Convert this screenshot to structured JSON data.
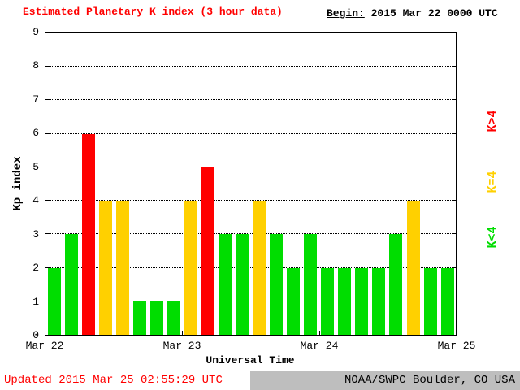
{
  "title": "Estimated Planetary K index (3 hour data)",
  "begin": {
    "label": "Begin:",
    "value": "2015 Mar 22 0000 UTC"
  },
  "footer": {
    "updated": "Updated 2015 Mar 25 02:55:29 UTC",
    "credit": "NOAA/SWPC Boulder, CO USA"
  },
  "chart_data": {
    "type": "bar",
    "title": "Estimated Planetary K index (3 hour data)",
    "xlabel": "Universal Time",
    "ylabel": "Kp index",
    "ylim": [
      0,
      9
    ],
    "yticks": [
      0,
      1,
      2,
      3,
      4,
      5,
      6,
      7,
      8,
      9
    ],
    "xtick_labels": [
      "Mar 22",
      "Mar 23",
      "Mar 24",
      "Mar 25"
    ],
    "bin_hours": 3,
    "grid": "dotted horizontal lines at each integer Kp",
    "values": [
      2,
      3,
      6,
      4,
      4,
      1,
      1,
      1,
      4,
      5,
      3,
      3,
      4,
      3,
      2,
      3,
      2,
      2,
      2,
      2,
      3,
      4,
      2,
      2
    ],
    "days": [
      {
        "label": "Mar 22",
        "values": [
          2,
          3,
          6,
          4,
          4,
          1,
          1,
          1
        ]
      },
      {
        "label": "Mar 23",
        "values": [
          4,
          5,
          3,
          3,
          4,
          3,
          2,
          3
        ]
      },
      {
        "label": "Mar 24",
        "values": [
          2,
          2,
          2,
          2,
          3,
          4,
          2,
          2
        ]
      }
    ],
    "colors": {
      "green": "#00dd00",
      "yellow": "#ffd000",
      "red": "#ff0000"
    },
    "legend": [
      {
        "label": "K>4",
        "color": "#ff0000"
      },
      {
        "label": "K=4",
        "color": "#ffd000"
      },
      {
        "label": "K<4",
        "color": "#00dd00"
      }
    ],
    "legend_position": "right, rotated vertical"
  }
}
